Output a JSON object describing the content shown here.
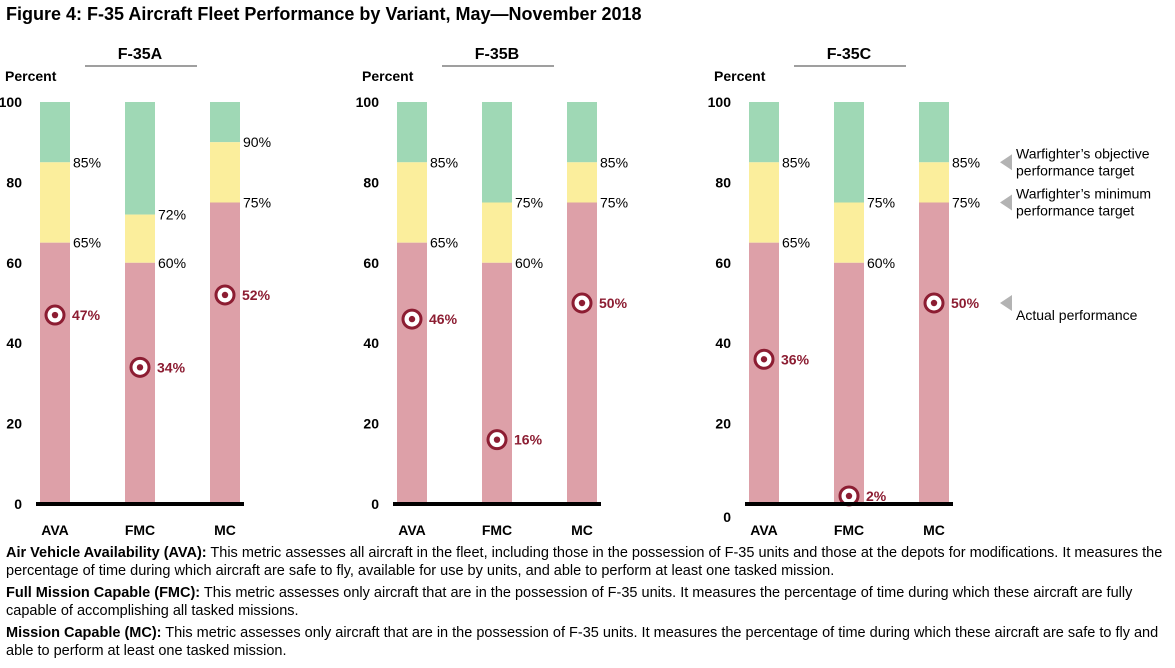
{
  "figure": {
    "title": "Figure 4: F-35 Aircraft Fleet Performance by Variant, May—November 2018"
  },
  "colors": {
    "actual": "#dda0a8",
    "minimum_band": "#fbee9c",
    "objective_band": "#9fd8b5",
    "marker": "#8c1d32",
    "axis": "#000000",
    "legend_arrow": "#b3b3b3"
  },
  "chart_data": {
    "type": "bar",
    "ylabel": "Percent",
    "ylim": [
      0,
      100
    ],
    "yticks": [
      0,
      20,
      40,
      60,
      80,
      100
    ],
    "categories": [
      "AVA",
      "FMC",
      "MC"
    ],
    "legend": {
      "objective": "Warfighter’s objective performance target",
      "minimum": "Warfighter’s minimum performance target",
      "actual": "Actual performance"
    },
    "panels": [
      {
        "name": "F-35A",
        "minimum_target": [
          65,
          60,
          75
        ],
        "objective_target": [
          85,
          72,
          90
        ],
        "actual": [
          47,
          34,
          52
        ]
      },
      {
        "name": "F-35B",
        "minimum_target": [
          65,
          60,
          75
        ],
        "objective_target": [
          85,
          75,
          85
        ],
        "actual": [
          46,
          16,
          50
        ]
      },
      {
        "name": "F-35C",
        "minimum_target": [
          65,
          60,
          75
        ],
        "objective_target": [
          85,
          75,
          85
        ],
        "actual": [
          36,
          2,
          50
        ]
      }
    ]
  },
  "definitions": [
    {
      "term": "Air Vehicle Availability (AVA):",
      "text": " This metric assesses all aircraft in the fleet, including those in the possession of F-35 units and those at the depots for modifications. It measures the percentage of time during which aircraft are safe to fly, available for use by units, and able to perform at least one tasked mission."
    },
    {
      "term": "Full Mission Capable (FMC):",
      "text": " This metric assesses only aircraft that are in the possession of F-35 units. It measures the percentage of time during which these aircraft are fully capable of accomplishing all tasked missions."
    },
    {
      "term": "Mission Capable (MC):",
      "text": " This metric assesses only aircraft that are in the possession of F-35 units. It measures the percentage of time during which these aircraft are safe to fly and able to perform at least one tasked mission."
    }
  ]
}
